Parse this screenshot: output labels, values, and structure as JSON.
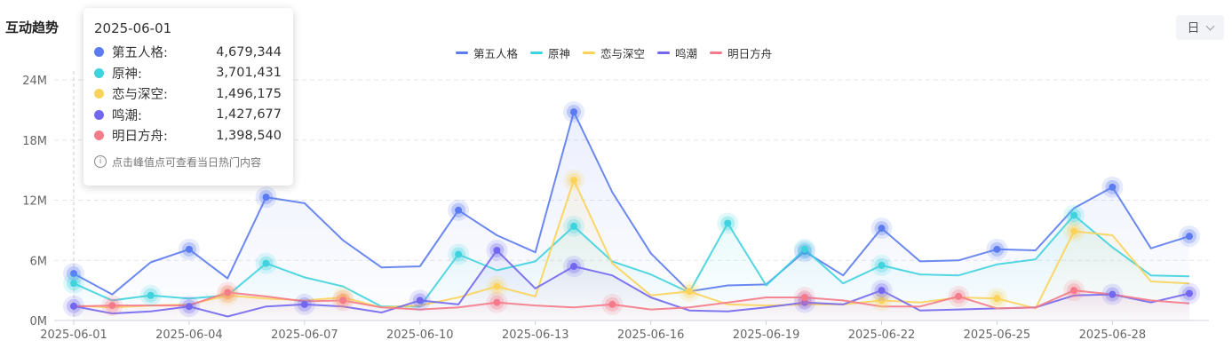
{
  "header": {
    "title": "互动趋势",
    "range_label": "日"
  },
  "tooltip": {
    "date": "2025-06-01",
    "rows": [
      {
        "name": "第五人格:",
        "value": "4,679,344",
        "color": "#5b7bf0"
      },
      {
        "name": "原神:",
        "value": "3,701,431",
        "color": "#3fd3de"
      },
      {
        "name": "恋与深空:",
        "value": "1,496,175",
        "color": "#fbd35a"
      },
      {
        "name": "鸣潮:",
        "value": "1,427,677",
        "color": "#7367f0"
      },
      {
        "name": "明日方舟:",
        "value": "1,398,540",
        "color": "#f57a8a"
      }
    ],
    "hint": "点击峰值点可查看当日热门内容"
  },
  "chart_data": {
    "type": "line",
    "title": "互动趋势",
    "ylim": [
      0,
      24000000
    ],
    "yticks": [
      {
        "label": "0M",
        "value": 0
      },
      {
        "label": "6M",
        "value": 6000000
      },
      {
        "label": "12M",
        "value": 12000000
      },
      {
        "label": "18M",
        "value": 18000000
      },
      {
        "label": "24M",
        "value": 24000000
      }
    ],
    "x": [
      "2025-06-01",
      "2025-06-02",
      "2025-06-03",
      "2025-06-04",
      "2025-06-05",
      "2025-06-06",
      "2025-06-07",
      "2025-06-08",
      "2025-06-09",
      "2025-06-10",
      "2025-06-11",
      "2025-06-12",
      "2025-06-13",
      "2025-06-14",
      "2025-06-15",
      "2025-06-16",
      "2025-06-17",
      "2025-06-18",
      "2025-06-19",
      "2025-06-20",
      "2025-06-21",
      "2025-06-22",
      "2025-06-23",
      "2025-06-24",
      "2025-06-25",
      "2025-06-26",
      "2025-06-27",
      "2025-06-28",
      "2025-06-29",
      "2025-06-30"
    ],
    "xtick_labels": [
      "2025-06-01",
      "2025-06-04",
      "2025-06-07",
      "2025-06-10",
      "2025-06-13",
      "2025-06-16",
      "2025-06-19",
      "2025-06-22",
      "2025-06-25",
      "2025-06-28"
    ],
    "grid": true,
    "legend_position": "top-center",
    "series": [
      {
        "name": "第五人格",
        "color": "#5b7bf0",
        "values": [
          4.68,
          2.6,
          5.8,
          7.1,
          4.2,
          12.3,
          11.7,
          8.0,
          5.3,
          5.4,
          11.0,
          8.5,
          6.8,
          20.8,
          12.8,
          6.7,
          2.9,
          3.5,
          3.6,
          6.9,
          4.5,
          9.2,
          5.9,
          6.0,
          7.1,
          7.0,
          11.2,
          13.3,
          7.2,
          8.4
        ],
        "peaks": [
          0,
          3,
          5,
          10,
          13,
          19,
          21,
          24,
          27,
          29
        ]
      },
      {
        "name": "原神",
        "color": "#3fd3de",
        "values": [
          3.7,
          2.0,
          2.5,
          2.2,
          2.5,
          5.7,
          4.3,
          3.4,
          1.4,
          1.4,
          6.6,
          5.0,
          5.9,
          9.4,
          5.9,
          4.6,
          2.8,
          9.7,
          3.5,
          7.1,
          3.7,
          5.5,
          4.6,
          4.5,
          5.6,
          6.1,
          10.5,
          7.3,
          4.5,
          4.4
        ],
        "peaks": [
          0,
          2,
          5,
          10,
          13,
          17,
          19,
          21,
          26
        ]
      },
      {
        "name": "恋与深空",
        "color": "#fbd35a",
        "values": [
          1.5,
          1.3,
          1.5,
          1.6,
          2.5,
          2.2,
          2.0,
          2.3,
          1.3,
          1.5,
          2.3,
          3.4,
          2.4,
          14.0,
          5.7,
          2.5,
          2.9,
          1.6,
          1.5,
          1.6,
          1.6,
          2.0,
          1.8,
          2.3,
          2.2,
          1.2,
          8.9,
          8.5,
          3.9,
          3.7
        ],
        "peaks": [
          4,
          7,
          11,
          13,
          16,
          21,
          24,
          26
        ]
      },
      {
        "name": "鸣潮",
        "color": "#7367f0",
        "values": [
          1.43,
          0.7,
          0.9,
          1.4,
          0.4,
          1.4,
          1.6,
          1.4,
          0.8,
          2.0,
          1.6,
          7.0,
          3.2,
          5.4,
          4.5,
          2.3,
          1.0,
          0.9,
          1.3,
          1.8,
          1.6,
          3.0,
          1.0,
          1.1,
          1.2,
          1.3,
          2.5,
          2.6,
          1.8,
          2.7
        ],
        "peaks": [
          0,
          3,
          6,
          9,
          11,
          13,
          19,
          21,
          27,
          29
        ]
      },
      {
        "name": "明日方舟",
        "color": "#f57a8a",
        "values": [
          1.4,
          1.5,
          1.5,
          1.5,
          2.8,
          2.4,
          1.9,
          2.0,
          1.3,
          1.1,
          1.3,
          1.8,
          1.5,
          1.3,
          1.6,
          1.1,
          1.3,
          1.8,
          2.3,
          2.3,
          2.0,
          1.4,
          1.4,
          2.4,
          1.2,
          1.3,
          3.0,
          2.6,
          2.0,
          1.7
        ],
        "peaks": [
          1,
          4,
          7,
          11,
          14,
          19,
          23,
          26
        ]
      }
    ],
    "value_unit": "M"
  }
}
